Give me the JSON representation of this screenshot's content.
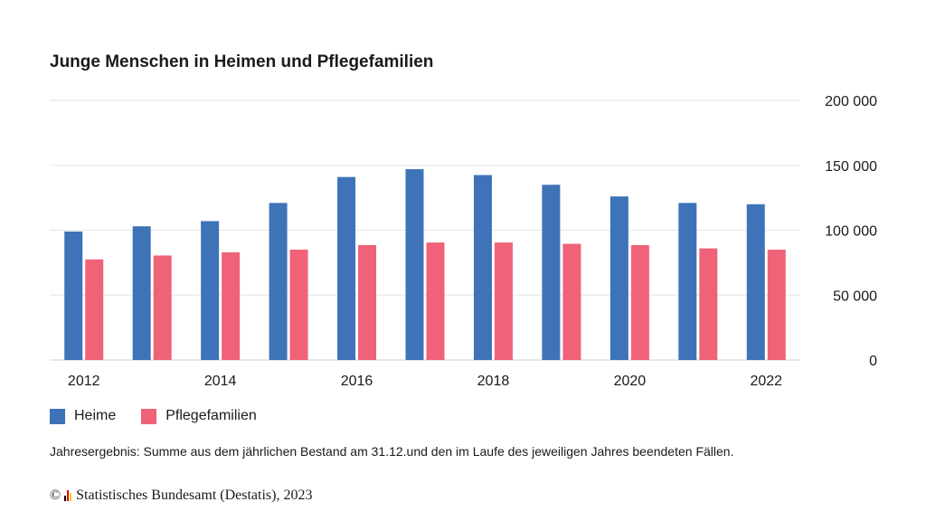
{
  "chart_data": {
    "type": "bar",
    "title": "Junge Menschen in Heimen und Pflegefamilien",
    "categories": [
      "2012",
      "2013",
      "2014",
      "2015",
      "2016",
      "2017",
      "2018",
      "2019",
      "2020",
      "2021",
      "2022"
    ],
    "x_tick_labels": [
      "2012",
      "",
      "2014",
      "",
      "2016",
      "",
      "2018",
      "",
      "2020",
      "",
      "2022"
    ],
    "series": [
      {
        "name": "Heime",
        "color": "#3f73b8",
        "values": [
          99000,
          103000,
          107000,
          121000,
          141000,
          147000,
          142500,
          135000,
          126000,
          121000,
          120000
        ]
      },
      {
        "name": "Pflegefamilien",
        "color": "#f06277",
        "values": [
          77500,
          80500,
          83000,
          85000,
          88500,
          90500,
          90500,
          89500,
          88500,
          86000,
          85000
        ]
      }
    ],
    "ylim": [
      0,
      200000
    ],
    "y_ticks": [
      0,
      50000,
      100000,
      150000,
      200000
    ],
    "y_tick_labels": [
      "0",
      "50 000",
      "100 000",
      "150 000",
      "200 000"
    ],
    "y_axis_side": "right",
    "grid": true,
    "legend_position": "bottom-left",
    "xlabel": "",
    "ylabel": ""
  },
  "footnote": "Jahresergebnis: Summe aus dem jährlichen Bestand am 31.12.und den im Laufe des jeweiligen Jahres beendeten Fällen.",
  "source": {
    "copyright": "©",
    "text": "Statistisches Bundesamt (Destatis), 2023",
    "logo_colors": [
      "#000000",
      "#dd0000",
      "#ffcc00"
    ]
  }
}
